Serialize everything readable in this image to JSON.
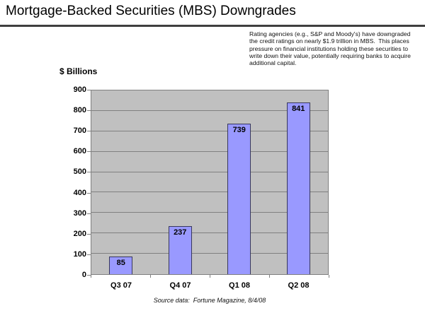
{
  "header": {
    "title": "Mortgage-Backed Securities (MBS) Downgrades"
  },
  "annotation": {
    "lines": [
      "Rating agencies (e.g., S&P and Moody's) have downgraded",
      "the credit ratings on nearly $1.9 trillion in MBS.  This places",
      "pressure on financial institutions holding these securities to",
      "write down their value, potentially requiring banks to acquire",
      "additional capital."
    ]
  },
  "chart_data": {
    "type": "bar",
    "title": "Mortgage-Backed Securities (MBS) Downgrades",
    "ylabel": "$ Billions",
    "xlabel": "",
    "categories": [
      "Q3 07",
      "Q4 07",
      "Q1 08",
      "Q2 08"
    ],
    "values": [
      85,
      237,
      739,
      841
    ],
    "value_labels_shown": true,
    "ylim": [
      0,
      900
    ],
    "ytick_step": 100,
    "grid": true,
    "legend_position": "none",
    "colors": {
      "bar_fill": "#9999FF",
      "bar_border": "#38385C",
      "plot_background": "#C0C0C0",
      "gridline": "#808080",
      "plot_border": "#808080"
    }
  },
  "source": {
    "text": "Source data:  Fortune Magazine, 8/4/08"
  }
}
